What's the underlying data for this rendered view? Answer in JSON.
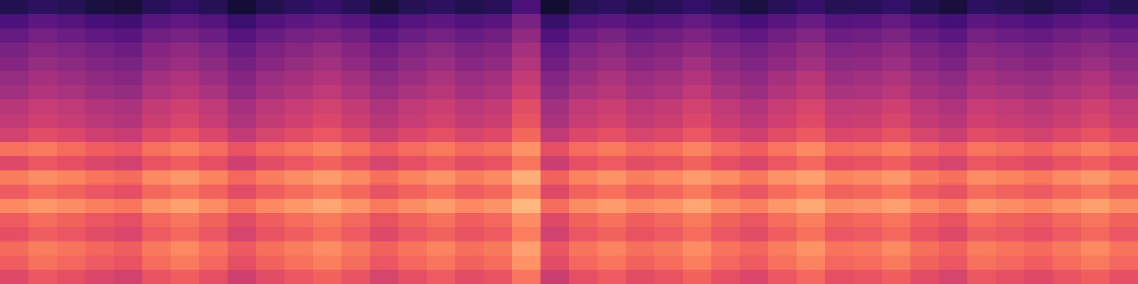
{
  "chart_data": {
    "type": "heatmap",
    "color": "magma",
    "tick_labels": false,
    "zlim": [
      0,
      100
    ],
    "cells": [
      [
        14,
        17,
        15,
        12,
        11,
        16,
        18,
        15,
        10,
        14,
        17,
        19,
        16,
        11,
        15,
        17,
        14,
        16,
        24,
        9,
        15,
        17,
        14,
        16,
        18,
        15,
        12,
        16,
        19,
        15,
        16,
        18,
        14,
        11,
        17,
        15,
        13,
        16,
        18,
        15
      ],
      [
        24,
        28,
        26,
        23,
        21,
        27,
        29,
        26,
        20,
        25,
        28,
        30,
        27,
        22,
        26,
        28,
        25,
        27,
        35,
        19,
        26,
        28,
        25,
        27,
        30,
        26,
        23,
        27,
        31,
        26,
        27,
        30,
        25,
        22,
        28,
        26,
        24,
        27,
        29,
        26
      ],
      [
        30,
        34,
        32,
        29,
        27,
        33,
        35,
        32,
        26,
        31,
        34,
        36,
        33,
        28,
        32,
        34,
        31,
        33,
        41,
        25,
        32,
        35,
        31,
        33,
        36,
        32,
        29,
        33,
        37,
        32,
        33,
        36,
        31,
        28,
        34,
        32,
        30,
        33,
        35,
        32
      ],
      [
        35,
        39,
        37,
        34,
        32,
        38,
        41,
        37,
        31,
        36,
        39,
        42,
        38,
        33,
        37,
        40,
        36,
        38,
        46,
        30,
        37,
        40,
        36,
        38,
        41,
        37,
        34,
        38,
        42,
        37,
        38,
        41,
        36,
        33,
        39,
        37,
        35,
        38,
        40,
        37
      ],
      [
        38,
        42,
        40,
        37,
        35,
        41,
        44,
        40,
        34,
        39,
        42,
        45,
        41,
        36,
        40,
        43,
        39,
        41,
        49,
        33,
        40,
        43,
        39,
        41,
        45,
        40,
        37,
        41,
        45,
        40,
        41,
        44,
        39,
        36,
        42,
        40,
        38,
        41,
        44,
        40
      ],
      [
        42,
        46,
        44,
        41,
        39,
        45,
        48,
        44,
        38,
        43,
        46,
        49,
        45,
        40,
        44,
        47,
        43,
        45,
        53,
        37,
        44,
        47,
        43,
        45,
        49,
        44,
        41,
        46,
        50,
        44,
        45,
        48,
        43,
        40,
        46,
        44,
        42,
        45,
        48,
        44
      ],
      [
        45,
        49,
        47,
        44,
        42,
        48,
        51,
        47,
        41,
        46,
        49,
        52,
        48,
        43,
        47,
        50,
        46,
        48,
        56,
        40,
        47,
        50,
        46,
        48,
        52,
        47,
        44,
        49,
        53,
        47,
        48,
        51,
        46,
        43,
        49,
        47,
        45,
        48,
        51,
        47
      ],
      [
        50,
        54,
        52,
        49,
        47,
        53,
        56,
        52,
        46,
        51,
        54,
        57,
        53,
        48,
        52,
        55,
        51,
        53,
        61,
        45,
        52,
        55,
        51,
        53,
        57,
        52,
        49,
        54,
        58,
        52,
        53,
        56,
        51,
        48,
        54,
        52,
        50,
        53,
        56,
        52
      ],
      [
        52,
        56,
        54,
        51,
        49,
        55,
        58,
        54,
        48,
        53,
        56,
        59,
        55,
        50,
        54,
        57,
        53,
        55,
        63,
        47,
        54,
        57,
        53,
        55,
        59,
        54,
        51,
        56,
        60,
        54,
        55,
        58,
        53,
        50,
        56,
        54,
        52,
        55,
        58,
        54
      ],
      [
        57,
        61,
        59,
        56,
        54,
        60,
        63,
        59,
        53,
        58,
        61,
        64,
        60,
        55,
        59,
        62,
        58,
        60,
        68,
        52,
        59,
        62,
        58,
        60,
        64,
        59,
        56,
        61,
        65,
        59,
        60,
        63,
        58,
        55,
        61,
        59,
        57,
        60,
        63,
        59
      ],
      [
        70,
        72,
        69,
        66,
        64,
        70,
        73,
        69,
        63,
        68,
        71,
        74,
        70,
        65,
        69,
        72,
        68,
        70,
        77,
        62,
        69,
        72,
        68,
        70,
        74,
        69,
        66,
        71,
        75,
        69,
        70,
        73,
        68,
        65,
        71,
        69,
        67,
        70,
        73,
        69
      ],
      [
        60,
        64,
        62,
        59,
        57,
        63,
        66,
        62,
        56,
        61,
        64,
        67,
        63,
        58,
        62,
        65,
        61,
        63,
        71,
        55,
        62,
        65,
        61,
        63,
        67,
        62,
        59,
        64,
        68,
        62,
        63,
        66,
        61,
        58,
        64,
        62,
        60,
        63,
        66,
        62
      ],
      [
        73,
        76,
        74,
        71,
        69,
        75,
        78,
        74,
        68,
        73,
        76,
        79,
        75,
        70,
        74,
        77,
        73,
        75,
        83,
        67,
        74,
        77,
        73,
        75,
        79,
        76,
        72,
        77,
        80,
        74,
        75,
        78,
        73,
        70,
        76,
        74,
        72,
        75,
        78,
        74
      ],
      [
        65,
        69,
        67,
        64,
        62,
        68,
        71,
        67,
        61,
        66,
        69,
        72,
        68,
        63,
        67,
        70,
        66,
        68,
        76,
        60,
        67,
        70,
        66,
        68,
        72,
        67,
        64,
        69,
        73,
        67,
        68,
        71,
        66,
        63,
        69,
        67,
        65,
        68,
        71,
        67
      ],
      [
        75,
        78,
        76,
        73,
        71,
        77,
        80,
        76,
        70,
        75,
        78,
        81,
        77,
        72,
        76,
        79,
        75,
        77,
        85,
        69,
        76,
        79,
        75,
        77,
        81,
        76,
        73,
        78,
        82,
        76,
        77,
        80,
        75,
        72,
        78,
        76,
        74,
        77,
        80,
        76
      ],
      [
        65,
        69,
        67,
        64,
        62,
        68,
        71,
        67,
        61,
        66,
        69,
        72,
        68,
        63,
        67,
        70,
        66,
        68,
        76,
        60,
        67,
        70,
        66,
        68,
        72,
        67,
        64,
        69,
        73,
        67,
        68,
        71,
        66,
        63,
        69,
        67,
        65,
        68,
        71,
        67
      ],
      [
        62,
        66,
        64,
        61,
        59,
        65,
        68,
        64,
        58,
        63,
        66,
        69,
        65,
        60,
        64,
        67,
        63,
        65,
        73,
        57,
        64,
        67,
        63,
        65,
        69,
        64,
        61,
        66,
        70,
        64,
        65,
        68,
        63,
        60,
        66,
        64,
        62,
        65,
        68,
        64
      ],
      [
        69,
        73,
        71,
        68,
        66,
        72,
        75,
        71,
        65,
        70,
        73,
        76,
        72,
        67,
        71,
        74,
        70,
        72,
        80,
        64,
        71,
        74,
        70,
        72,
        76,
        71,
        68,
        73,
        77,
        71,
        72,
        75,
        70,
        67,
        73,
        71,
        69,
        72,
        75,
        71
      ],
      [
        66,
        70,
        68,
        65,
        63,
        69,
        72,
        68,
        62,
        67,
        70,
        73,
        69,
        64,
        68,
        71,
        67,
        69,
        77,
        61,
        68,
        71,
        67,
        69,
        73,
        68,
        65,
        70,
        74,
        68,
        69,
        72,
        67,
        64,
        70,
        68,
        66,
        69,
        72,
        68
      ],
      [
        60,
        64,
        62,
        59,
        57,
        63,
        66,
        62,
        56,
        61,
        64,
        67,
        63,
        58,
        62,
        65,
        61,
        63,
        71,
        55,
        62,
        65,
        61,
        63,
        67,
        62,
        59,
        64,
        68,
        62,
        63,
        66,
        61,
        58,
        64,
        62,
        60,
        63,
        66,
        62
      ]
    ]
  }
}
